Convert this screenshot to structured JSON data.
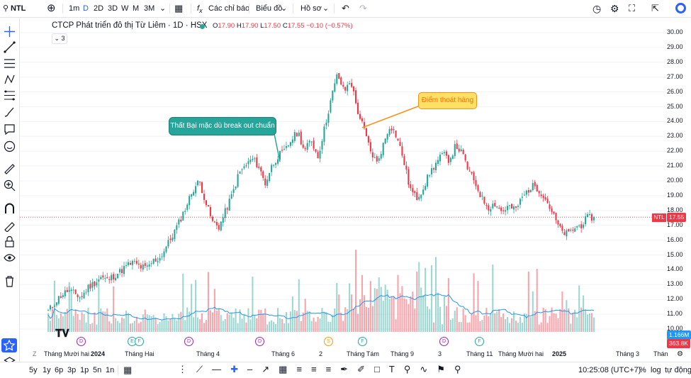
{
  "toolbar": {
    "symbol": "NTL",
    "intervals": [
      "1m",
      "D",
      "2D",
      "3D",
      "W",
      "M",
      "3M"
    ],
    "indicators": "Các chỉ báo",
    "chart_type": "Biểu đồ",
    "profile": "Hồ sơ"
  },
  "legend": {
    "title": "CTCP Phát triển đô thị Từ Liêm · 1D · HSX",
    "o_label": "O",
    "o": "17.90",
    "h_label": "H",
    "h": "17.90",
    "l_label": "L",
    "l": "17.50",
    "c_label": "C",
    "c": "17.55",
    "chg": "−0.10 (−0.57%)",
    "collapsed_count": "3"
  },
  "annotations": {
    "failed": "Thất Bại mặc dù break out chuẩn",
    "exit": "Điểm thoát hàng"
  },
  "price_tag": {
    "symbol": "NTL",
    "value": "17.55"
  },
  "volume_tags": {
    "v1": "1.166M",
    "v2": "363.8K"
  },
  "bottombar": {
    "ranges": [
      "5y",
      "1y",
      "6p",
      "3p",
      "1p",
      "5n",
      "1n"
    ],
    "time": "10:25:08 (UTC+7)",
    "percent": "%",
    "log": "log",
    "auto": "tự động"
  },
  "colors": {
    "up": "#26a69a",
    "down": "#f23645",
    "accent": "#2962ff",
    "ma": "#2196f3"
  },
  "chart_data": {
    "type": "candlestick",
    "y_ticks": [
      "30.00",
      "29.00",
      "28.00",
      "27.00",
      "26.00",
      "25.00",
      "24.00",
      "23.00",
      "22.00",
      "21.00",
      "20.00",
      "19.00",
      "18.00",
      "17.00",
      "16.00",
      "15.00",
      "14.00",
      "13.00",
      "12.00",
      "11.00",
      "10.00"
    ],
    "x_labels": [
      "Tháng Mười hai",
      "2024",
      "Tháng Hai",
      "Tháng 4",
      "Tháng 6",
      "2",
      "Tháng Tám",
      "Tháng 9",
      "3",
      "Tháng 11",
      "Tháng Mười hai",
      "2025",
      "Tháng 3",
      "Thán"
    ],
    "close_path": [
      11.2,
      11.8,
      12.3,
      12.6,
      12.4,
      12.1,
      12.8,
      13.1,
      13.5,
      13.3,
      13.6,
      13.9,
      14.3,
      14.5,
      14.2,
      14.1,
      14.6,
      14.8,
      15.6,
      16.4,
      17.3,
      18.3,
      19.4,
      20.0,
      18.5,
      17.2,
      16.9,
      18.0,
      19.1,
      20.5,
      21.0,
      21.5,
      21.0,
      19.8,
      21.0,
      21.7,
      22.0,
      22.8,
      23.3,
      22.0,
      22.8,
      21.6,
      23.5,
      25.5,
      27.2,
      26.0,
      26.8,
      24.8,
      23.5,
      22.0,
      21.2,
      22.5,
      23.8,
      23.0,
      21.5,
      19.5,
      18.8,
      19.5,
      20.5,
      21.2,
      21.8,
      21.4,
      22.4,
      21.8,
      20.6,
      19.8,
      18.8,
      18.2,
      18.5,
      17.9,
      18.3,
      18.0,
      18.8,
      19.4,
      19.7,
      19.2,
      18.5,
      17.5,
      16.6,
      16.4,
      16.8,
      17.0,
      17.5,
      17.55
    ],
    "markers": [
      "D",
      "E",
      "F",
      "D",
      "D",
      "S",
      "F",
      "D",
      "F"
    ]
  }
}
